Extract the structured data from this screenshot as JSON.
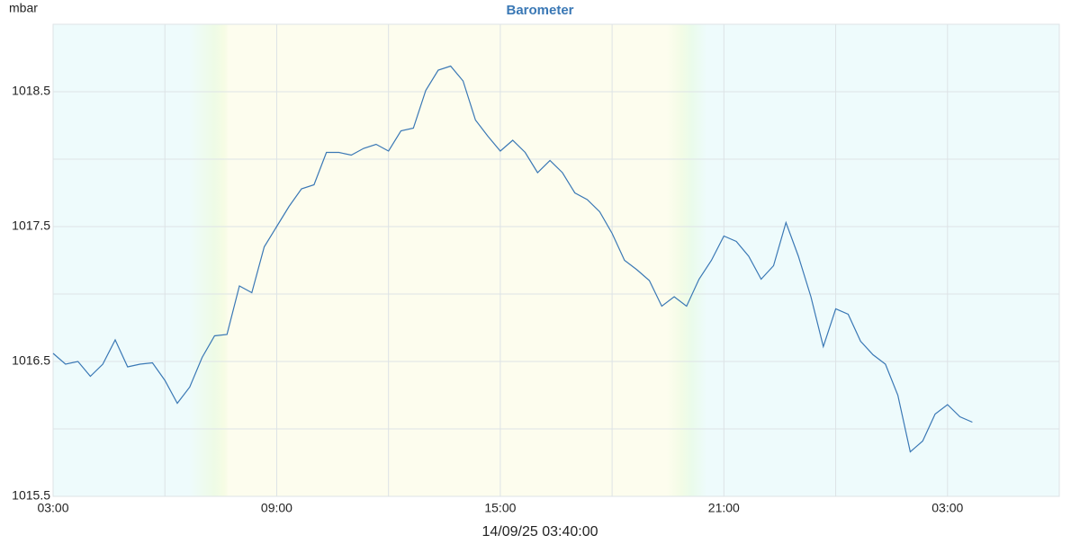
{
  "chart_data": {
    "type": "line",
    "title": "Barometer",
    "y_label": "mbar",
    "timestamp": "14/09/25 03:40:00",
    "x": [
      0,
      20,
      40,
      60,
      80,
      100,
      120,
      140,
      160,
      180,
      200,
      220,
      240,
      260,
      280,
      300,
      320,
      340,
      360,
      380,
      400,
      420,
      440,
      460,
      480,
      500,
      520,
      540,
      560,
      580,
      600,
      620,
      640,
      660,
      680,
      700,
      720,
      740,
      760,
      780,
      800,
      820,
      840,
      860,
      880,
      900,
      920,
      940,
      960,
      980,
      1000,
      1020,
      1040,
      1060,
      1080,
      1100,
      1120,
      1140,
      1160,
      1180,
      1200,
      1220,
      1240,
      1260,
      1280,
      1300,
      1320,
      1340,
      1360,
      1380,
      1400,
      1420,
      1440,
      1460,
      1480
    ],
    "series": [
      {
        "name": "Barometer",
        "color": "#3a78b5",
        "values": [
          1016.56,
          1016.48,
          1016.5,
          1016.39,
          1016.48,
          1016.66,
          1016.46,
          1016.48,
          1016.49,
          1016.36,
          1016.19,
          1016.31,
          1016.53,
          1016.69,
          1016.7,
          1017.06,
          1017.01,
          1017.35,
          1017.5,
          1017.65,
          1017.78,
          1017.81,
          1018.05,
          1018.05,
          1018.03,
          1018.08,
          1018.11,
          1018.06,
          1018.21,
          1018.23,
          1018.51,
          1018.66,
          1018.69,
          1018.58,
          1018.29,
          1018.17,
          1018.06,
          1018.14,
          1018.05,
          1017.9,
          1017.99,
          1017.9,
          1017.75,
          1017.7,
          1017.61,
          1017.45,
          1017.25,
          1017.18,
          1017.1,
          1016.91,
          1016.98,
          1016.91,
          1017.11,
          1017.25,
          1017.43,
          1017.39,
          1017.28,
          1017.11,
          1017.21,
          1017.53,
          1017.28,
          1016.98,
          1016.61,
          1016.89,
          1016.85,
          1016.65,
          1016.55,
          1016.48,
          1016.25,
          1015.83,
          1015.91,
          1016.11,
          1016.18,
          1016.09,
          1016.05
        ]
      }
    ],
    "xlim": [
      0,
      1620
    ],
    "xticks": [
      {
        "value": 0,
        "label": "03:00"
      },
      {
        "value": 180,
        "label": null
      },
      {
        "value": 360,
        "label": "09:00"
      },
      {
        "value": 540,
        "label": null
      },
      {
        "value": 720,
        "label": "15:00"
      },
      {
        "value": 900,
        "label": null
      },
      {
        "value": 1080,
        "label": "21:00"
      },
      {
        "value": 1260,
        "label": null
      },
      {
        "value": 1440,
        "label": "03:00"
      }
    ],
    "ylim": [
      1015.5,
      1019.0
    ],
    "yticks": [
      1015.5,
      {
        "value": 1016,
        "label": null
      },
      1016.5,
      {
        "value": 1017,
        "label": null
      },
      1017.5,
      {
        "value": 1018,
        "label": null
      },
      1018.5
    ],
    "grid": true
  }
}
